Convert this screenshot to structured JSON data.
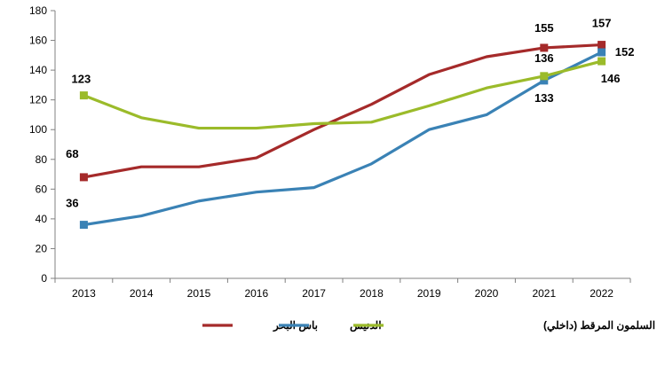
{
  "chart_data": {
    "type": "line",
    "title": "",
    "xlabel": "",
    "ylabel": "",
    "ylim": [
      0,
      180
    ],
    "yticks": [
      0,
      20,
      40,
      60,
      80,
      100,
      120,
      140,
      160,
      180
    ],
    "categories": [
      "2013",
      "2014",
      "2015",
      "2016",
      "2017",
      "2018",
      "2019",
      "2020",
      "2021",
      "2022"
    ],
    "grid": false,
    "legend_position": "bottom",
    "series": [
      {
        "name": "باس البحر",
        "color": "#A52A2A",
        "values": [
          68,
          75,
          75,
          81,
          100,
          117,
          137,
          149,
          155,
          157
        ],
        "labels": {
          "0": "68",
          "8": "155",
          "9": "157"
        }
      },
      {
        "name": "الدنيس",
        "color": "#3A82B5",
        "values": [
          36,
          42,
          52,
          58,
          61,
          77,
          100,
          110,
          133,
          152
        ],
        "labels": {
          "0": "36",
          "8": "133",
          "9": "152"
        }
      },
      {
        "name": "سمك السلمون المرقط (داخلي)",
        "color": "#9BBB2A",
        "values": [
          123,
          108,
          101,
          101,
          104,
          105,
          116,
          128,
          136,
          146
        ],
        "labels": {
          "0": "123",
          "8": "136",
          "9": "146"
        }
      }
    ]
  }
}
